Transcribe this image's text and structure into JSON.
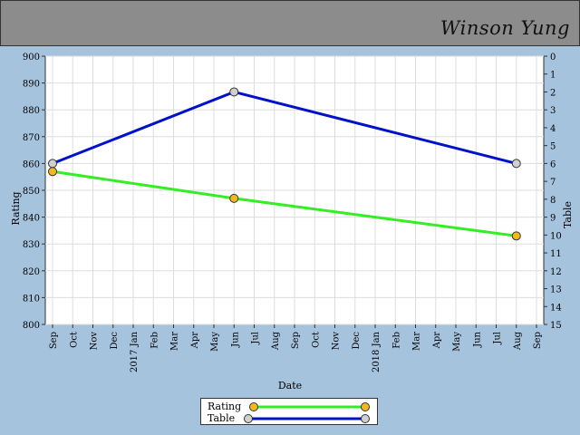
{
  "header": {
    "player_name": "Winson Yung"
  },
  "colors": {
    "rating": "#33ee22",
    "table": "#0011cc",
    "rating_marker": "#f5b81c",
    "table_marker": "#d0d0d0"
  },
  "chart_data": {
    "type": "line",
    "title": "",
    "xlabel": "Date",
    "ylabel_left": "Rating",
    "ylabel_right": "Table",
    "grid": true,
    "legend_placement": "bottom-center",
    "x_ticks": [
      "Sep",
      "Oct",
      "Nov",
      "Dec",
      "2017 Jan",
      "Feb",
      "Mar",
      "Apr",
      "May",
      "Jun",
      "Jul",
      "Aug",
      "Sep",
      "Oct",
      "Nov",
      "Dec",
      "2018 Jan",
      "Feb",
      "Mar",
      "Apr",
      "May",
      "Jun",
      "Jul",
      "Aug",
      "Sep"
    ],
    "y_left": {
      "min": 800,
      "max": 900,
      "step": 10
    },
    "y_right": {
      "min": 0,
      "max": 15,
      "step": 1,
      "inverted": true
    },
    "series": [
      {
        "name": "Rating",
        "axis": "left",
        "x": [
          "2016-09",
          "2017-06",
          "2018-08"
        ],
        "y": [
          857,
          847,
          833
        ]
      },
      {
        "name": "Table",
        "axis": "right",
        "x": [
          "2016-09",
          "2017-06",
          "2018-08"
        ],
        "y": [
          6,
          2,
          6
        ]
      }
    ]
  }
}
